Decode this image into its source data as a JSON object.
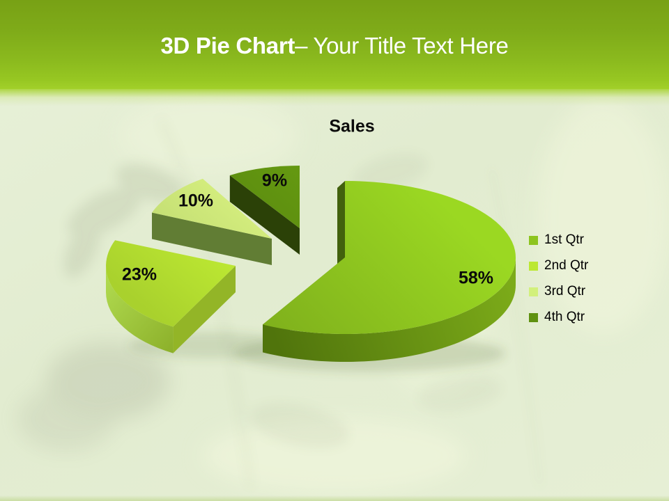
{
  "slide": {
    "header": {
      "title_bold": "3D Pie Chart",
      "title_rest": "– Your Title Text Here"
    }
  },
  "chart_data": {
    "type": "pie",
    "style": "3d-exploded",
    "title": "Sales",
    "categories": [
      "1st Qtr",
      "2nd Qtr",
      "3rd Qtr",
      "4th Qtr"
    ],
    "values": [
      58,
      23,
      10,
      9
    ],
    "data_labels": [
      "58%",
      "23%",
      "10%",
      "9%"
    ],
    "colors": [
      "#8dc41f",
      "#bce832",
      "#d2f07c",
      "#5f9110"
    ],
    "legend_position": "right",
    "start_angle_deg": 0,
    "direction": "clockwise",
    "banner_color": "#8bba1e",
    "label_color": "#0a0a0a"
  }
}
